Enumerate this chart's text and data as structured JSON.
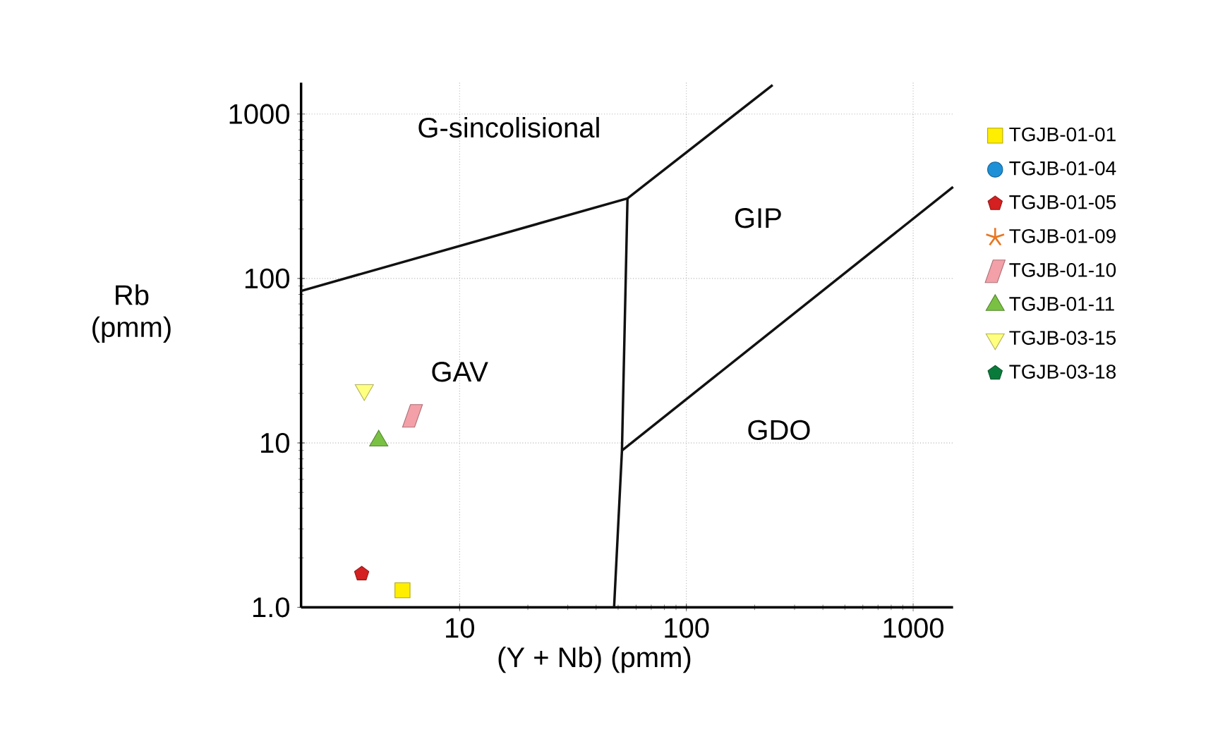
{
  "chart_data": {
    "type": "scatter",
    "xlabel": "(Y + Nb) (pmm)",
    "ylabel": "Rb (pmm)",
    "log": "xy",
    "grid": true,
    "legend": "right",
    "xlim": [
      2,
      1500
    ],
    "ylim": [
      1,
      1550
    ],
    "xticks": [
      10,
      100,
      1000
    ],
    "yticks": [
      {
        "value": 1,
        "label": "1.0"
      },
      10,
      100,
      1000
    ],
    "series": [
      {
        "name": "TGJB-01-01",
        "color": "#ffee00",
        "marker": "square",
        "x": [
          5.6
        ],
        "values": [
          1.27
        ]
      },
      {
        "name": "TGJB-01-04",
        "color": "#1e90d8",
        "marker": "circle"
      },
      {
        "name": "TGJB-01-05",
        "color": "#d42020",
        "x": [
          3.7
        ],
        "values": [
          1.6
        ]
      },
      {
        "name": "TGJB-01-09",
        "color": "#e87722",
        "marker": "star"
      },
      {
        "name": "TGJB-01-10",
        "color": "#f4a0a8",
        "marker": "diamond",
        "x": [
          6.2
        ],
        "values": [
          14.6
        ]
      },
      {
        "name": "TGJB-01-11",
        "color": "#7ac143",
        "marker": "triangle",
        "x": [
          4.4
        ],
        "values": [
          10.3
        ]
      },
      {
        "name": "TGJB-03-15",
        "color": "#ffff80",
        "marker": "triangle_down",
        "x": [
          3.8
        ],
        "values": [
          21
        ]
      },
      {
        "name": "TGJB-03-18",
        "color": "#0a7a3a"
      },
      {
        "type": "line",
        "color": "#111111",
        "marker": "none",
        "x": [
          2,
          55,
          240
        ],
        "values": [
          84,
          307,
          1500
        ]
      },
      {
        "type": "line",
        "color": "#111111",
        "marker": "none",
        "x": [
          55,
          52,
          48
        ],
        "values": [
          307,
          9,
          1
        ]
      },
      {
        "type": "line",
        "color": "#111111",
        "marker": "none",
        "x": [
          52,
          1500
        ],
        "values": [
          9,
          360
        ]
      }
    ],
    "annotations": [
      "G-sincolisional",
      "GIP",
      "GAV",
      "GDO"
    ]
  }
}
